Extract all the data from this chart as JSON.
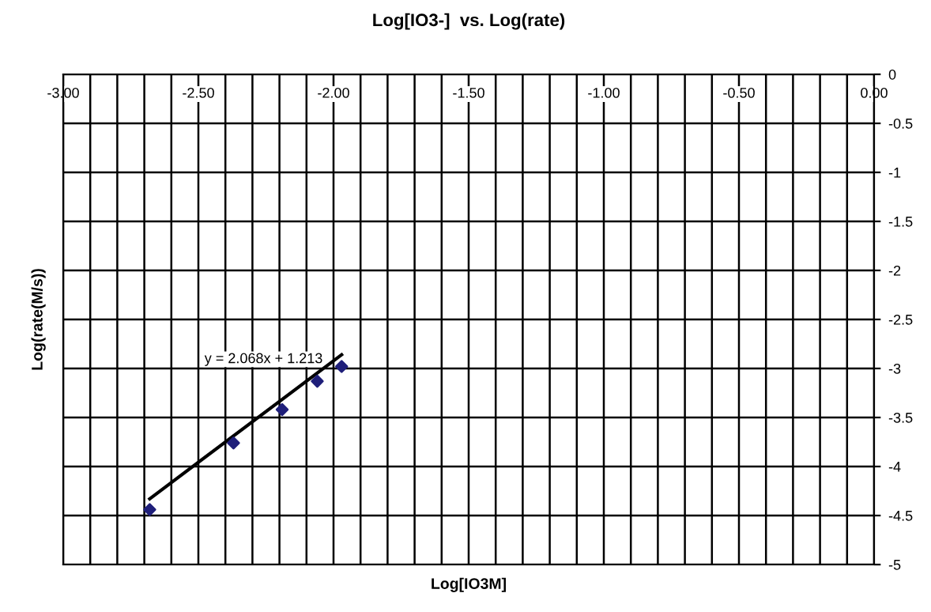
{
  "chart_data": {
    "type": "scatter",
    "title": "Log[IO3-]  vs. Log(rate)",
    "xlabel": "Log[IO3M]",
    "ylabel": "Log(rate(M/s))",
    "series": [
      {
        "color": "#1f1f7a",
        "x": [
          -2.68,
          -2.37,
          -2.19,
          -2.06,
          -1.97
        ],
        "values": [
          -4.44,
          -3.76,
          -3.42,
          -3.13,
          -2.98
        ],
        "marker": "diamond"
      },
      {
        "type": "line",
        "color": "#000000",
        "x": [
          -2.68,
          -1.97
        ],
        "values": [
          -4.33,
          -2.86
        ],
        "marker": "none",
        "line_style": "solid"
      }
    ],
    "annotations": [
      "y = 2.068x + 1.213"
    ],
    "xlim": [
      -3,
      0
    ],
    "ylim": [
      -5,
      0
    ],
    "xticks": [
      {
        "value": -3,
        "label": "-3.00"
      },
      {
        "value": -2.9,
        "label": null
      },
      {
        "value": -2.8,
        "label": null
      },
      {
        "value": -2.7,
        "label": null
      },
      {
        "value": -2.6,
        "label": null
      },
      {
        "value": -2.5,
        "label": "-2.50"
      },
      {
        "value": -2.4,
        "label": null
      },
      {
        "value": -2.3,
        "label": null
      },
      {
        "value": -2.2,
        "label": null
      },
      {
        "value": -2.1,
        "label": null
      },
      {
        "value": -2,
        "label": "-2.00"
      },
      {
        "value": -1.9,
        "label": null
      },
      {
        "value": -1.8,
        "label": null
      },
      {
        "value": -1.7,
        "label": null
      },
      {
        "value": -1.6,
        "label": null
      },
      {
        "value": -1.5,
        "label": "-1.50"
      },
      {
        "value": -1.4,
        "label": null
      },
      {
        "value": -1.3,
        "label": null
      },
      {
        "value": -1.2,
        "label": null
      },
      {
        "value": -1.1,
        "label": null
      },
      {
        "value": -1,
        "label": "-1.00"
      },
      {
        "value": -0.9,
        "label": null
      },
      {
        "value": -0.8,
        "label": null
      },
      {
        "value": -0.7,
        "label": null
      },
      {
        "value": -0.6,
        "label": null
      },
      {
        "value": -0.5,
        "label": "-0.50"
      },
      {
        "value": -0.4,
        "label": null
      },
      {
        "value": -0.3,
        "label": null
      },
      {
        "value": -0.2,
        "label": null
      },
      {
        "value": -0.1,
        "label": null
      },
      {
        "value": 0,
        "label": "0.00"
      }
    ],
    "yticks": [
      0,
      -0.5,
      -1,
      -1.5,
      -2,
      -2.5,
      -3,
      -3.5,
      -4,
      -4.5,
      -5
    ],
    "grid": true,
    "legend": false
  }
}
